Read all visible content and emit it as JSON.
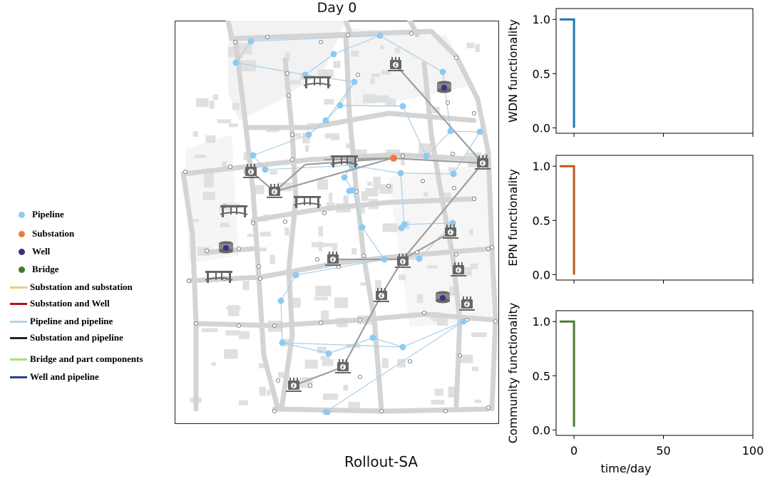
{
  "map_title": "Day 0",
  "map_caption": "Rollout-SA",
  "legend": [
    {
      "label": "Pipeline",
      "kind": "dot",
      "color": "#8ccaf2"
    },
    {
      "label": "Substation",
      "kind": "dot",
      "color": "#f07a3c"
    },
    {
      "label": "Well",
      "kind": "dot",
      "color": "#3b2f86"
    },
    {
      "label": "Bridge",
      "kind": "dot",
      "color": "#3f7a2e"
    },
    {
      "label": "Substation and substation",
      "kind": "line",
      "color": "#f7c87a"
    },
    {
      "label": "Substation and Well",
      "kind": "line",
      "color": "#b0141a"
    },
    {
      "label": "Pipeline and pipeline",
      "kind": "line",
      "color": "#b3d3ea"
    },
    {
      "label": "Substation and pipeline",
      "kind": "line",
      "color": "#222222"
    },
    {
      "label": "Bridge and part components",
      "kind": "line",
      "color": "#a6df86"
    },
    {
      "label": "Well and pipeline",
      "kind": "line",
      "color": "#22458f"
    }
  ],
  "chart_data": [
    {
      "type": "line",
      "ylabel": "WDN functionality",
      "color": "#1f77b4",
      "series": [
        {
          "x": [
            -8,
            0,
            0
          ],
          "y": [
            1.0,
            1.0,
            0.0
          ]
        }
      ],
      "xlim": [
        -10,
        100
      ],
      "ylim": [
        -0.05,
        1.1
      ],
      "yticks": [
        "0.0",
        "0.5",
        "1.0"
      ],
      "show_xticks": false
    },
    {
      "type": "line",
      "ylabel": "EPN functionality",
      "color": "#c0581c",
      "series": [
        {
          "x": [
            -8,
            0,
            0
          ],
          "y": [
            1.0,
            1.0,
            0.0
          ]
        }
      ],
      "xlim": [
        -10,
        100
      ],
      "ylim": [
        -0.05,
        1.1
      ],
      "yticks": [
        "0.0",
        "0.5",
        "1.0"
      ],
      "show_xticks": false
    },
    {
      "type": "line",
      "ylabel": "Community functionality",
      "color": "#4f7b30",
      "series": [
        {
          "x": [
            -8,
            0,
            0
          ],
          "y": [
            1.0,
            1.0,
            0.03
          ]
        }
      ],
      "xlim": [
        -10,
        100
      ],
      "ylim": [
        -0.05,
        1.1
      ],
      "yticks": [
        "0.0",
        "0.5",
        "1.0"
      ],
      "xticks": [
        "0",
        "50",
        "100"
      ],
      "xlabel": "time/day",
      "show_xticks": true
    }
  ]
}
